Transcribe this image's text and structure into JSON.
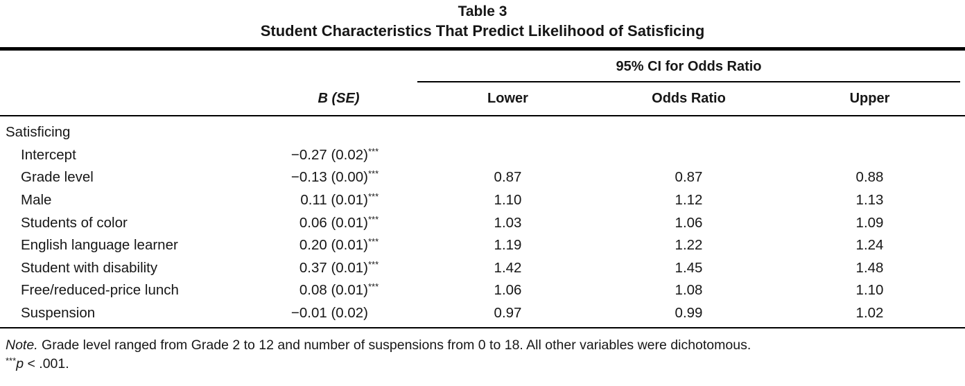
{
  "title": {
    "number": "Table 3",
    "text": "Student Characteristics That Predict Likelihood of Satisficing"
  },
  "header": {
    "ci_spanner": "95% CI for Odds Ratio",
    "columns": {
      "b_se": "B (SE)",
      "lower": "Lower",
      "odds_ratio": "Odds Ratio",
      "upper": "Upper"
    }
  },
  "table": {
    "rows": [
      {
        "label": "Satisficing",
        "b_se": "",
        "sig": "",
        "lower": "",
        "odds_ratio": "",
        "upper": ""
      },
      {
        "label": "Intercept",
        "b_se": "−0.27 (0.02)",
        "sig": "***",
        "lower": "",
        "odds_ratio": "",
        "upper": ""
      },
      {
        "label": "Grade level",
        "b_se": "−0.13 (0.00)",
        "sig": "***",
        "lower": "0.87",
        "odds_ratio": "0.87",
        "upper": "0.88"
      },
      {
        "label": "Male",
        "b_se": "0.11 (0.01)",
        "sig": "***",
        "lower": "1.10",
        "odds_ratio": "1.12",
        "upper": "1.13"
      },
      {
        "label": "Students of color",
        "b_se": "0.06 (0.01)",
        "sig": "***",
        "lower": "1.03",
        "odds_ratio": "1.06",
        "upper": "1.09"
      },
      {
        "label": "English language learner",
        "b_se": "0.20 (0.01)",
        "sig": "***",
        "lower": "1.19",
        "odds_ratio": "1.22",
        "upper": "1.24"
      },
      {
        "label": "Student with disability",
        "b_se": "0.37 (0.01)",
        "sig": "***",
        "lower": "1.42",
        "odds_ratio": "1.45",
        "upper": "1.48"
      },
      {
        "label": "Free/reduced-price lunch",
        "b_se": "0.08 (0.01)",
        "sig": "***",
        "lower": "1.06",
        "odds_ratio": "1.08",
        "upper": "1.10"
      },
      {
        "label": "Suspension",
        "b_se": "−0.01 (0.02)",
        "sig": "",
        "lower": "0.97",
        "odds_ratio": "0.99",
        "upper": "1.02"
      }
    ]
  },
  "note": {
    "label": "Note.",
    "text": " Grade level ranged from Grade 2 to 12 and number of suspensions from 0 to 18. All other variables were dichotomous.",
    "sig_stars": "***",
    "sig_p": "p",
    "sig_rest": " < .001."
  },
  "colors": {
    "text": "#161616",
    "rule": "#000000",
    "background": "#ffffff"
  }
}
